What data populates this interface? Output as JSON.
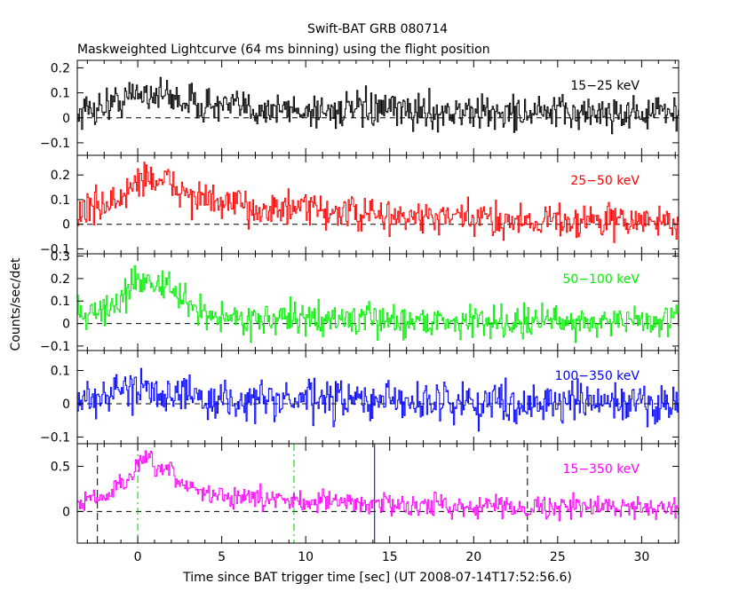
{
  "chart_data": {
    "type": "line",
    "title": "Swift-BAT GRB 080714",
    "subtitle": "Maskweighted Lightcurve (64 ms binning) using the flight position",
    "xlabel": "Time since BAT trigger time [sec] (UT 2008-07-14T17:52:56.6)",
    "ylabel": "Counts/sec/det",
    "xlim": [
      -3.6,
      32.2
    ],
    "x_ticks": [
      0,
      5,
      10,
      15,
      20,
      25,
      30
    ],
    "grid": false,
    "panels": [
      {
        "name": "15−25 keV",
        "color": "#000000",
        "ylim": [
          -0.15,
          0.23
        ],
        "y_ticks": [
          {
            "v": 0.2,
            "label": "0.2"
          },
          {
            "v": 0.1,
            "label": "0.1"
          },
          {
            "v": 0,
            "label": "0"
          },
          {
            "v": -0.1,
            "label": "−0.1"
          }
        ],
        "points": [
          [
            -3.6,
            0.02
          ],
          [
            -2,
            0.05
          ],
          [
            -1,
            0.07
          ],
          [
            0,
            0.1
          ],
          [
            1,
            0.1
          ],
          [
            2,
            0.08
          ],
          [
            4,
            0.05
          ],
          [
            6,
            0.04
          ],
          [
            10,
            0.03
          ],
          [
            15,
            0.03
          ],
          [
            20,
            0.02
          ],
          [
            32.2,
            0.02
          ]
        ],
        "noise": 0.035,
        "reference_lines": []
      },
      {
        "name": "25−50 keV",
        "color": "#ff0000",
        "ylim": [
          -0.12,
          0.28
        ],
        "y_ticks": [
          {
            "v": 0.2,
            "label": "0.2"
          },
          {
            "v": 0.1,
            "label": "0.1"
          },
          {
            "v": 0,
            "label": "0"
          },
          {
            "v": -0.1,
            "label": "−0.1"
          }
        ],
        "points": [
          [
            -3.6,
            0.05
          ],
          [
            -1,
            0.1
          ],
          [
            0,
            0.18
          ],
          [
            0.5,
            0.2
          ],
          [
            1,
            0.18
          ],
          [
            2,
            0.16
          ],
          [
            3,
            0.12
          ],
          [
            5,
            0.08
          ],
          [
            8,
            0.06
          ],
          [
            10,
            0.06
          ],
          [
            15,
            0.03
          ],
          [
            20,
            0.02
          ],
          [
            32.2,
            0.01
          ]
        ],
        "noise": 0.035,
        "reference_lines": []
      },
      {
        "name": "50−100 keV",
        "color": "#00ee00",
        "ylim": [
          -0.12,
          0.31
        ],
        "y_ticks": [
          {
            "v": 0.3,
            "label": "0.3"
          },
          {
            "v": 0.2,
            "label": "0.2"
          },
          {
            "v": 0.1,
            "label": "0.1"
          },
          {
            "v": 0,
            "label": "0"
          },
          {
            "v": -0.1,
            "label": "−0.1"
          }
        ],
        "points": [
          [
            -3.6,
            0.04
          ],
          [
            -2,
            0.06
          ],
          [
            -1,
            0.1
          ],
          [
            0,
            0.2
          ],
          [
            0.5,
            0.2
          ],
          [
            1,
            0.18
          ],
          [
            2,
            0.15
          ],
          [
            3,
            0.08
          ],
          [
            4,
            0.04
          ],
          [
            6,
            0.02
          ],
          [
            10,
            0.02
          ],
          [
            20,
            0.01
          ],
          [
            32.2,
            0.01
          ]
        ],
        "noise": 0.035,
        "reference_lines": []
      },
      {
        "name": "100−350 keV",
        "color": "#0000ff",
        "ylim": [
          -0.12,
          0.16
        ],
        "y_ticks": [
          {
            "v": 0.1,
            "label": "0.1"
          },
          {
            "v": 0,
            "label": "0"
          },
          {
            "v": -0.1,
            "label": "−0.1"
          }
        ],
        "points": [
          [
            -3.6,
            0.02
          ],
          [
            -1,
            0.03
          ],
          [
            0,
            0.06
          ],
          [
            1,
            0.05
          ],
          [
            2,
            0.03
          ],
          [
            4,
            0.01
          ],
          [
            10,
            0.01
          ],
          [
            32.2,
            0.0
          ]
        ],
        "noise": 0.03,
        "reference_lines": []
      },
      {
        "name": "15−350 keV",
        "color": "#ff00ff",
        "ylim": [
          -0.35,
          0.75
        ],
        "y_ticks": [
          {
            "v": 0.5,
            "label": "0.5"
          },
          {
            "v": 0,
            "label": "0"
          }
        ],
        "points": [
          [
            -3.6,
            0.1
          ],
          [
            -2,
            0.15
          ],
          [
            -1,
            0.3
          ],
          [
            0,
            0.5
          ],
          [
            0.5,
            0.55
          ],
          [
            1,
            0.5
          ],
          [
            2,
            0.4
          ],
          [
            3,
            0.28
          ],
          [
            4,
            0.2
          ],
          [
            6,
            0.15
          ],
          [
            10,
            0.12
          ],
          [
            15,
            0.08
          ],
          [
            20,
            0.06
          ],
          [
            25,
            0.05
          ],
          [
            32.2,
            0.05
          ]
        ],
        "noise": 0.06,
        "reference_lines": [
          {
            "x": -2.4,
            "color": "#000000",
            "style": "dashed"
          },
          {
            "x": 0,
            "color": "#00cc00",
            "style": "dashdot"
          },
          {
            "x": 9.3,
            "color": "#00cc00",
            "style": "dashdot"
          },
          {
            "x": 14.1,
            "color": "#0000aa",
            "style": "solid"
          },
          {
            "x": 23.2,
            "color": "#000000",
            "style": "dashed"
          }
        ]
      }
    ]
  }
}
